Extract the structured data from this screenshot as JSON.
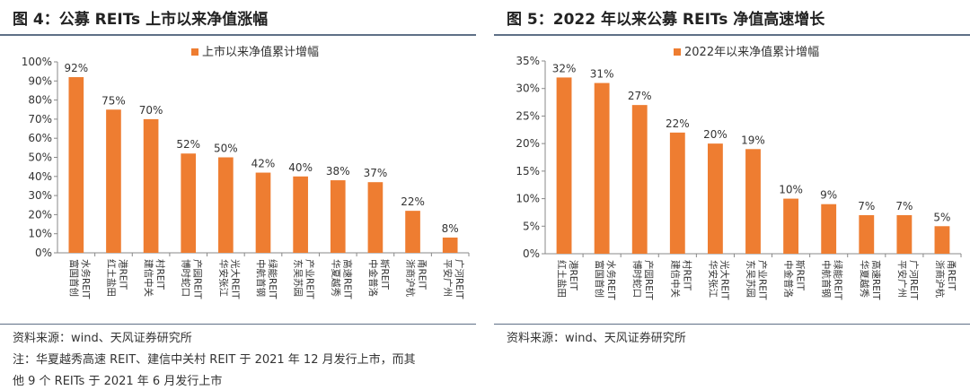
{
  "left": {
    "title": "图 4：公募 REITs 上市以来净值涨幅",
    "source": "资料来源：wind、天风证券研究所",
    "note_line1": "注：华夏越秀高速 REIT、建信中关村 REIT 于 2021 年 12 月发行上市，而其",
    "note_line2": "他 9 个 REITs 于 2021 年 6 月发行上市"
  },
  "right": {
    "title": "图 5：2022 年以来公募 REITs 净值高速增长",
    "source": "资料来源：wind、天风证券研究所"
  },
  "chart_data": [
    {
      "type": "bar",
      "color": "#ee7d31",
      "ylim": [
        0,
        100
      ],
      "ytick_step": 10,
      "ytick_format": "percent",
      "legend": "上市以来净值累计增幅",
      "legend_position": "top-center",
      "grid": false,
      "categories": [
        [
          "富国首创",
          "水务REIT"
        ],
        [
          "红土盐田",
          "港REIT"
        ],
        [
          "建信中关",
          "村REIT"
        ],
        [
          "博时蛇口",
          "产园REIT"
        ],
        [
          "华安张江",
          "光大REIT"
        ],
        [
          "中航首钢",
          "绿能REIT"
        ],
        [
          "东吴苏园",
          "产业REIT"
        ],
        [
          "华夏越秀",
          "高速REIT"
        ],
        [
          "中金普洛",
          "斯REIT"
        ],
        [
          "浙商沪杭",
          "甬REIT"
        ],
        [
          "平安广州",
          "广河REIT"
        ]
      ],
      "values": [
        92,
        75,
        70,
        52,
        50,
        42,
        40,
        38,
        37,
        22,
        8
      ],
      "value_labels": [
        "92%",
        "75%",
        "70%",
        "52%",
        "50%",
        "42%",
        "40%",
        "38%",
        "37%",
        "22%",
        "8%"
      ]
    },
    {
      "type": "bar",
      "color": "#ee7d31",
      "ylim": [
        0,
        35
      ],
      "ytick_step": 5,
      "ytick_format": "percent",
      "legend": "2022年以来净值累计增幅",
      "legend_position": "top-center",
      "grid": false,
      "categories": [
        [
          "红土盐田",
          "港REIT"
        ],
        [
          "富国首创",
          "水务REIT"
        ],
        [
          "博时蛇口",
          "产园REIT"
        ],
        [
          "建信中关",
          "村REIT"
        ],
        [
          "华安张江",
          "光大REIT"
        ],
        [
          "东吴苏园",
          "产业REIT"
        ],
        [
          "中金普洛",
          "斯REIT"
        ],
        [
          "中航首钢",
          "绿能REIT"
        ],
        [
          "华夏越秀",
          "高速REIT"
        ],
        [
          "平安广州",
          "广河REIT"
        ],
        [
          "浙商沪杭",
          "甬REIT"
        ]
      ],
      "values": [
        32,
        31,
        27,
        22,
        20,
        19,
        10,
        9,
        7,
        7,
        5
      ],
      "value_labels": [
        "32%",
        "31%",
        "27%",
        "22%",
        "20%",
        "19%",
        "10%",
        "9%",
        "7%",
        "7%",
        "5%"
      ]
    }
  ]
}
